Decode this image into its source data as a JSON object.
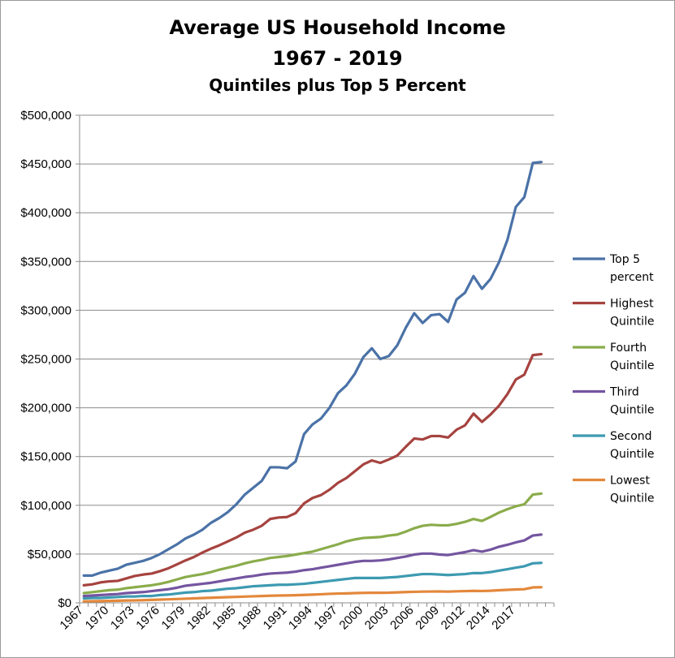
{
  "chart_data": {
    "type": "line",
    "title": "Average US Household Income",
    "subtitle": "1967 - 2019",
    "subtitle2": "Quintiles plus Top 5 Percent",
    "xlabel": "",
    "ylabel": "",
    "ylim": [
      0,
      500000
    ],
    "y_ticks": [
      "$0",
      "$50,000",
      "$100,000",
      "$150,000",
      "$200,000",
      "$250,000",
      "$300,000",
      "$350,000",
      "$400,000",
      "$450,000",
      "$500,000"
    ],
    "x_tick_labels": [
      "1967",
      "1970",
      "1973",
      "1976",
      "1979",
      "1982",
      "1985",
      "1988",
      "1991",
      "1994",
      "1997",
      "2000",
      "2003",
      "2006",
      "2009",
      "2012",
      "2014",
      "2017"
    ],
    "grid": "horizontal",
    "legend_position": "right",
    "x": [
      "1967",
      "1968",
      "1969",
      "1970",
      "1971",
      "1972",
      "1973",
      "1974",
      "1975",
      "1976",
      "1977",
      "1978",
      "1979",
      "1980",
      "1981",
      "1982",
      "1983",
      "1984",
      "1985",
      "1986",
      "1987",
      "1988",
      "1989",
      "1990",
      "1991",
      "1992",
      "1993",
      "1994",
      "1995",
      "1996",
      "1997",
      "1998",
      "1999",
      "2000",
      "2001",
      "2002",
      "2003",
      "2004",
      "2005",
      "2006",
      "2007",
      "2008",
      "2009",
      "2010",
      "2011",
      "2012",
      "2013",
      "2013",
      "2014",
      "2015",
      "2016",
      "2017",
      "2017",
      "2018",
      "2019"
    ],
    "series": [
      {
        "name": "Top 5 percent",
        "color": "#4a72a7",
        "values": [
          28000,
          28000,
          31000,
          33000,
          35000,
          39000,
          41000,
          43000,
          46000,
          50000,
          55000,
          60000,
          66000,
          70000,
          75000,
          82000,
          87000,
          93000,
          101000,
          111000,
          118000,
          125000,
          139000,
          139000,
          138000,
          145000,
          173000,
          183000,
          189000,
          200000,
          215000,
          223000,
          235000,
          252000,
          261000,
          250000,
          253000,
          264000,
          282000,
          297000,
          287000,
          295000,
          296000,
          288000,
          311000,
          318000,
          335000,
          322000,
          332000,
          349000,
          372000,
          406000,
          416000,
          451000,
          452000
        ]
      },
      {
        "name": "Highest Quintile",
        "color": "#a6433f",
        "values": [
          18000,
          19000,
          21000,
          22000,
          22500,
          25000,
          27500,
          29000,
          30000,
          32500,
          35500,
          39500,
          43500,
          47000,
          51500,
          55500,
          59000,
          63000,
          67000,
          72000,
          75000,
          79000,
          86000,
          87500,
          88000,
          92000,
          102000,
          107500,
          110500,
          116000,
          123000,
          128000,
          135000,
          142000,
          146000,
          143500,
          147000,
          151000,
          160000,
          168500,
          167500,
          171000,
          171000,
          169500,
          177500,
          182000,
          194000,
          185500,
          193000,
          202000,
          214000,
          229000,
          234000,
          254000,
          255000
        ]
      },
      {
        "name": "Fourth Quintile",
        "color": "#8aac4b",
        "values": [
          10000,
          11000,
          12000,
          13000,
          13500,
          15000,
          16000,
          17000,
          18000,
          19500,
          21500,
          24000,
          26500,
          28000,
          29500,
          31500,
          34000,
          36000,
          38000,
          40500,
          42500,
          44000,
          46000,
          47000,
          48000,
          49500,
          51000,
          52500,
          55000,
          57500,
          60000,
          63000,
          65000,
          66500,
          67000,
          67500,
          69000,
          70000,
          73000,
          76500,
          79000,
          80000,
          79500,
          79500,
          81000,
          83000,
          86000,
          84000,
          88000,
          92500,
          96000,
          99000,
          101000,
          111000,
          112000
        ]
      },
      {
        "name": "Third Quintile",
        "color": "#7455a0",
        "values": [
          7000,
          7500,
          8000,
          8500,
          9000,
          10000,
          10500,
          11000,
          12000,
          13000,
          14000,
          15500,
          17500,
          18500,
          19500,
          20500,
          22000,
          23500,
          25000,
          26500,
          27500,
          29000,
          30000,
          30500,
          31000,
          32000,
          33500,
          34500,
          36000,
          37500,
          39000,
          40500,
          42000,
          43000,
          43000,
          43500,
          44500,
          46000,
          47500,
          49500,
          50500,
          50500,
          49500,
          49000,
          50500,
          52000,
          54000,
          52500,
          54500,
          57500,
          59500,
          62000,
          64000,
          69000,
          70000
        ]
      },
      {
        "name": "Second Quintile",
        "color": "#3d9ab1",
        "values": [
          4500,
          5000,
          5000,
          5500,
          6000,
          6500,
          6500,
          7000,
          7000,
          8000,
          8500,
          9500,
          10500,
          11000,
          12000,
          12500,
          13500,
          14500,
          15000,
          16000,
          17000,
          17500,
          18000,
          18500,
          18500,
          19000,
          19500,
          20500,
          21500,
          22500,
          23500,
          24500,
          25500,
          25500,
          25500,
          25500,
          26000,
          26500,
          27500,
          28500,
          29500,
          29500,
          29000,
          28500,
          29000,
          29500,
          30500,
          30500,
          31500,
          33000,
          34500,
          36000,
          37500,
          40500,
          41000
        ]
      },
      {
        "name": "Lowest Quintile",
        "color": "#e3883c",
        "values": [
          1500,
          1700,
          1800,
          2000,
          2200,
          2400,
          2500,
          2700,
          3000,
          3300,
          3600,
          3900,
          4200,
          4600,
          4900,
          5200,
          5500,
          5800,
          6100,
          6400,
          6700,
          7000,
          7300,
          7500,
          7600,
          7800,
          8100,
          8400,
          8800,
          9200,
          9500,
          9700,
          10000,
          10200,
          10300,
          10300,
          10400,
          10700,
          11000,
          11300,
          11500,
          11600,
          11700,
          11500,
          11800,
          12000,
          12300,
          12100,
          12400,
          12900,
          13300,
          13700,
          14000,
          15800,
          16000
        ]
      }
    ]
  }
}
